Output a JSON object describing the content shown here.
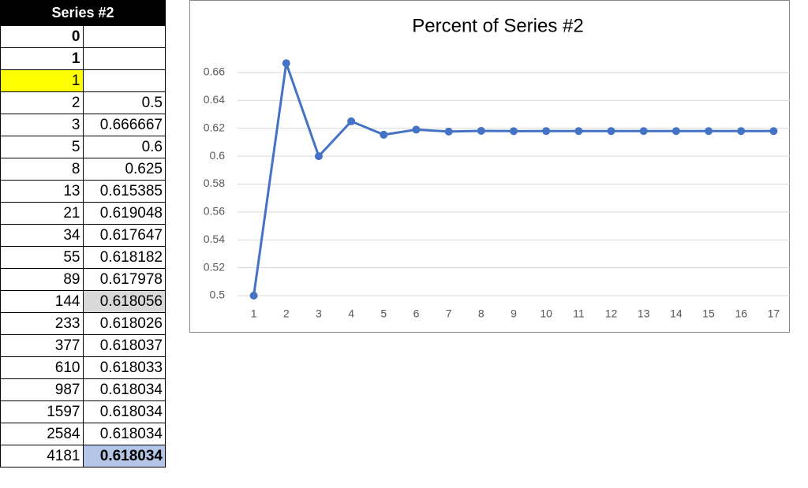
{
  "table": {
    "header": "Series #2",
    "rows": [
      [
        "0"
      ],
      [
        "1"
      ],
      [
        "1"
      ],
      [
        "2",
        "0.5"
      ],
      [
        "3",
        "0.666667"
      ],
      [
        "5",
        "0.6"
      ],
      [
        "8",
        "0.625"
      ],
      [
        "13",
        "0.615385"
      ],
      [
        "21",
        "0.619048"
      ],
      [
        "34",
        "0.617647"
      ],
      [
        "55",
        "0.618182"
      ],
      [
        "89",
        "0.617978"
      ],
      [
        "144",
        "0.618056"
      ],
      [
        "233",
        "0.618026"
      ],
      [
        "377",
        "0.618037"
      ],
      [
        "610",
        "0.618033"
      ],
      [
        "987",
        "0.618034"
      ],
      [
        "1597",
        "0.618034"
      ],
      [
        "2584",
        "0.618034"
      ],
      [
        "4181",
        "0.618034"
      ]
    ]
  },
  "chart_data": {
    "type": "line",
    "title": "Percent of Series #2",
    "x": [
      1,
      2,
      3,
      4,
      5,
      6,
      7,
      8,
      9,
      10,
      11,
      12,
      13,
      14,
      15,
      16,
      17
    ],
    "values": [
      0.5,
      0.666667,
      0.6,
      0.625,
      0.615385,
      0.619048,
      0.617647,
      0.618182,
      0.617978,
      0.618056,
      0.618026,
      0.618037,
      0.618033,
      0.618034,
      0.618034,
      0.618034,
      0.618034
    ],
    "color": "#4472c4",
    "xlim": [
      0.5,
      17.5
    ],
    "xticks": [
      1,
      2,
      3,
      4,
      5,
      6,
      7,
      8,
      9,
      10,
      11,
      12,
      13,
      14,
      15,
      16,
      17
    ],
    "ylim": [
      0.5,
      0.66
    ],
    "yticks": [
      0.5,
      0.52,
      0.54,
      0.56,
      0.58,
      0.6,
      0.62,
      0.64,
      0.66
    ],
    "grid": true
  }
}
